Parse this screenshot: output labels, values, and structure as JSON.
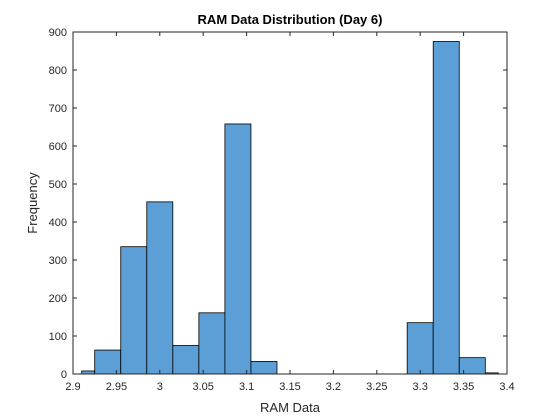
{
  "chart_data": {
    "type": "bar",
    "title": "RAM Data Distribution (Day 6)",
    "xlabel": "RAM Data",
    "ylabel": "Frequency",
    "xlim": [
      2.9,
      3.4
    ],
    "ylim": [
      0,
      900
    ],
    "xticks": [
      2.9,
      2.95,
      3.0,
      3.05,
      3.1,
      3.15,
      3.2,
      3.25,
      3.3,
      3.35,
      3.4
    ],
    "xtick_labels": [
      "2.9",
      "2.95",
      "3",
      "3.05",
      "3.1",
      "3.15",
      "3.2",
      "3.25",
      "3.3",
      "3.35",
      "3.4"
    ],
    "yticks": [
      0,
      100,
      200,
      300,
      400,
      500,
      600,
      700,
      800,
      900
    ],
    "ytick_labels": [
      "0",
      "100",
      "200",
      "300",
      "400",
      "500",
      "600",
      "700",
      "800",
      "900"
    ],
    "bins": [
      {
        "x0": 2.91,
        "x1": 2.925,
        "value": 8
      },
      {
        "x0": 2.925,
        "x1": 2.955,
        "value": 63
      },
      {
        "x0": 2.955,
        "x1": 2.985,
        "value": 335
      },
      {
        "x0": 2.985,
        "x1": 3.015,
        "value": 453
      },
      {
        "x0": 3.015,
        "x1": 3.045,
        "value": 75
      },
      {
        "x0": 3.045,
        "x1": 3.075,
        "value": 161
      },
      {
        "x0": 3.075,
        "x1": 3.105,
        "value": 658
      },
      {
        "x0": 3.105,
        "x1": 3.135,
        "value": 33
      },
      {
        "x0": 3.135,
        "x1": 3.165,
        "value": 0
      },
      {
        "x0": 3.165,
        "x1": 3.195,
        "value": 0
      },
      {
        "x0": 3.195,
        "x1": 3.225,
        "value": 0
      },
      {
        "x0": 3.225,
        "x1": 3.255,
        "value": 0
      },
      {
        "x0": 3.255,
        "x1": 3.285,
        "value": 0
      },
      {
        "x0": 3.285,
        "x1": 3.315,
        "value": 135
      },
      {
        "x0": 3.315,
        "x1": 3.345,
        "value": 875
      },
      {
        "x0": 3.345,
        "x1": 3.375,
        "value": 43
      },
      {
        "x0": 3.375,
        "x1": 3.39,
        "value": 3
      }
    ],
    "bar_color": "#5b9fd6",
    "grid": false,
    "box": true
  }
}
